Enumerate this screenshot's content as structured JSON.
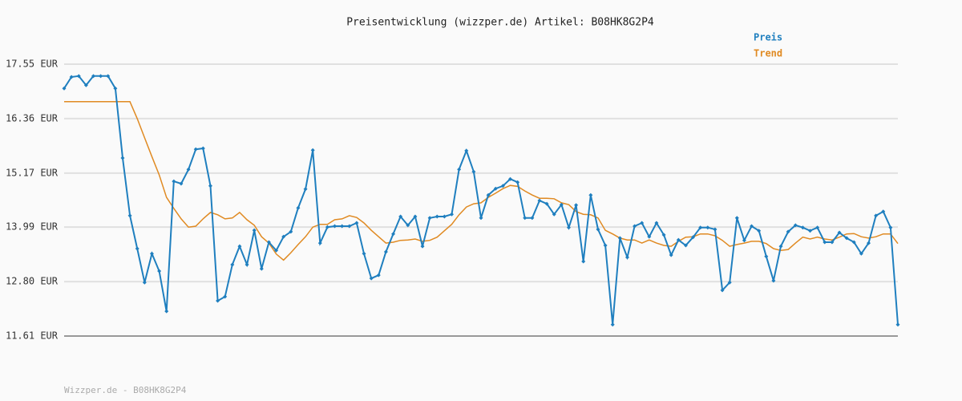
{
  "chart_data": {
    "type": "line",
    "title": "Preisentwicklung (wizzper.de) Artikel: B08HK8G2P4",
    "footer": "Wizzper.de - B08HK8G2P4",
    "ylim": [
      11.61,
      17.55
    ],
    "yticks": [
      {
        "value": 11.61,
        "label": "11.61 EUR"
      },
      {
        "value": 12.8,
        "label": "12.80 EUR"
      },
      {
        "value": 13.99,
        "label": "13.99 EUR"
      },
      {
        "value": 15.17,
        "label": "15.17 EUR"
      },
      {
        "value": 16.36,
        "label": "16.36 EUR"
      },
      {
        "value": 17.55,
        "label": "17.55 EUR"
      }
    ],
    "grid": true,
    "series": [
      {
        "name": "Preis",
        "color": "#1f7fbf",
        "markers": true,
        "values": [
          17.02,
          17.27,
          17.29,
          17.09,
          17.29,
          17.29,
          17.29,
          17.02,
          15.5,
          14.24,
          13.52,
          12.78,
          13.41,
          13.03,
          12.15,
          14.99,
          14.94,
          15.25,
          15.69,
          15.71,
          14.89,
          12.38,
          12.47,
          13.17,
          13.57,
          13.17,
          13.92,
          13.08,
          13.66,
          13.48,
          13.78,
          13.89,
          14.41,
          14.82,
          15.67,
          13.64,
          13.99,
          14.01,
          14.01,
          14.01,
          14.08,
          13.41,
          12.87,
          12.94,
          13.45,
          13.84,
          14.22,
          14.03,
          14.22,
          13.57,
          14.19,
          14.22,
          14.22,
          14.27,
          15.25,
          15.66,
          15.2,
          14.19,
          14.69,
          14.83,
          14.89,
          15.04,
          14.97,
          14.19,
          14.19,
          14.57,
          14.5,
          14.27,
          14.48,
          13.98,
          14.47,
          13.24,
          14.69,
          13.94,
          13.59,
          11.86,
          13.75,
          13.33,
          14.01,
          14.08,
          13.78,
          14.08,
          13.82,
          13.38,
          13.71,
          13.59,
          13.77,
          13.98,
          13.98,
          13.94,
          12.61,
          12.78,
          14.19,
          13.7,
          14.01,
          13.91,
          13.35,
          12.82,
          13.57,
          13.89,
          14.03,
          13.98,
          13.91,
          13.98,
          13.66,
          13.66,
          13.87,
          13.75,
          13.66,
          13.41,
          13.64,
          14.24,
          14.33,
          13.98,
          11.86
        ]
      },
      {
        "name": "Trend",
        "color": "#e08a22",
        "markers": false,
        "values": [
          16.73,
          16.73,
          16.73,
          16.73,
          16.73,
          16.73,
          16.73,
          16.73,
          16.73,
          16.73,
          16.36,
          15.94,
          15.53,
          15.13,
          14.64,
          14.4,
          14.17,
          13.99,
          14.01,
          14.17,
          14.31,
          14.26,
          14.17,
          14.19,
          14.31,
          14.15,
          14.03,
          13.78,
          13.64,
          13.4,
          13.27,
          13.43,
          13.61,
          13.78,
          13.99,
          14.05,
          14.05,
          14.15,
          14.17,
          14.24,
          14.2,
          14.08,
          13.92,
          13.78,
          13.64,
          13.66,
          13.7,
          13.71,
          13.73,
          13.68,
          13.7,
          13.77,
          13.91,
          14.05,
          14.26,
          14.43,
          14.5,
          14.52,
          14.64,
          14.73,
          14.83,
          14.9,
          14.88,
          14.78,
          14.69,
          14.62,
          14.62,
          14.61,
          14.52,
          14.48,
          14.33,
          14.27,
          14.26,
          14.19,
          13.92,
          13.84,
          13.75,
          13.71,
          13.71,
          13.64,
          13.71,
          13.64,
          13.59,
          13.57,
          13.68,
          13.77,
          13.78,
          13.84,
          13.84,
          13.8,
          13.7,
          13.57,
          13.61,
          13.64,
          13.68,
          13.68,
          13.63,
          13.52,
          13.48,
          13.5,
          13.64,
          13.77,
          13.73,
          13.77,
          13.73,
          13.71,
          13.77,
          13.84,
          13.85,
          13.78,
          13.75,
          13.78,
          13.84,
          13.84,
          13.63
        ]
      }
    ]
  }
}
